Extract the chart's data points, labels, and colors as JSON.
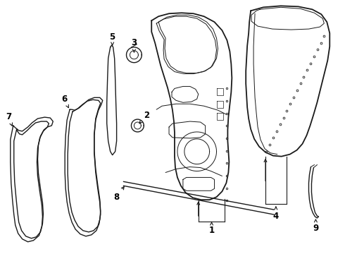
{
  "background_color": "#ffffff",
  "line_color": "#1a1a1a",
  "label_color": "#000000",
  "figure_width": 4.9,
  "figure_height": 3.6,
  "dpi": 100
}
